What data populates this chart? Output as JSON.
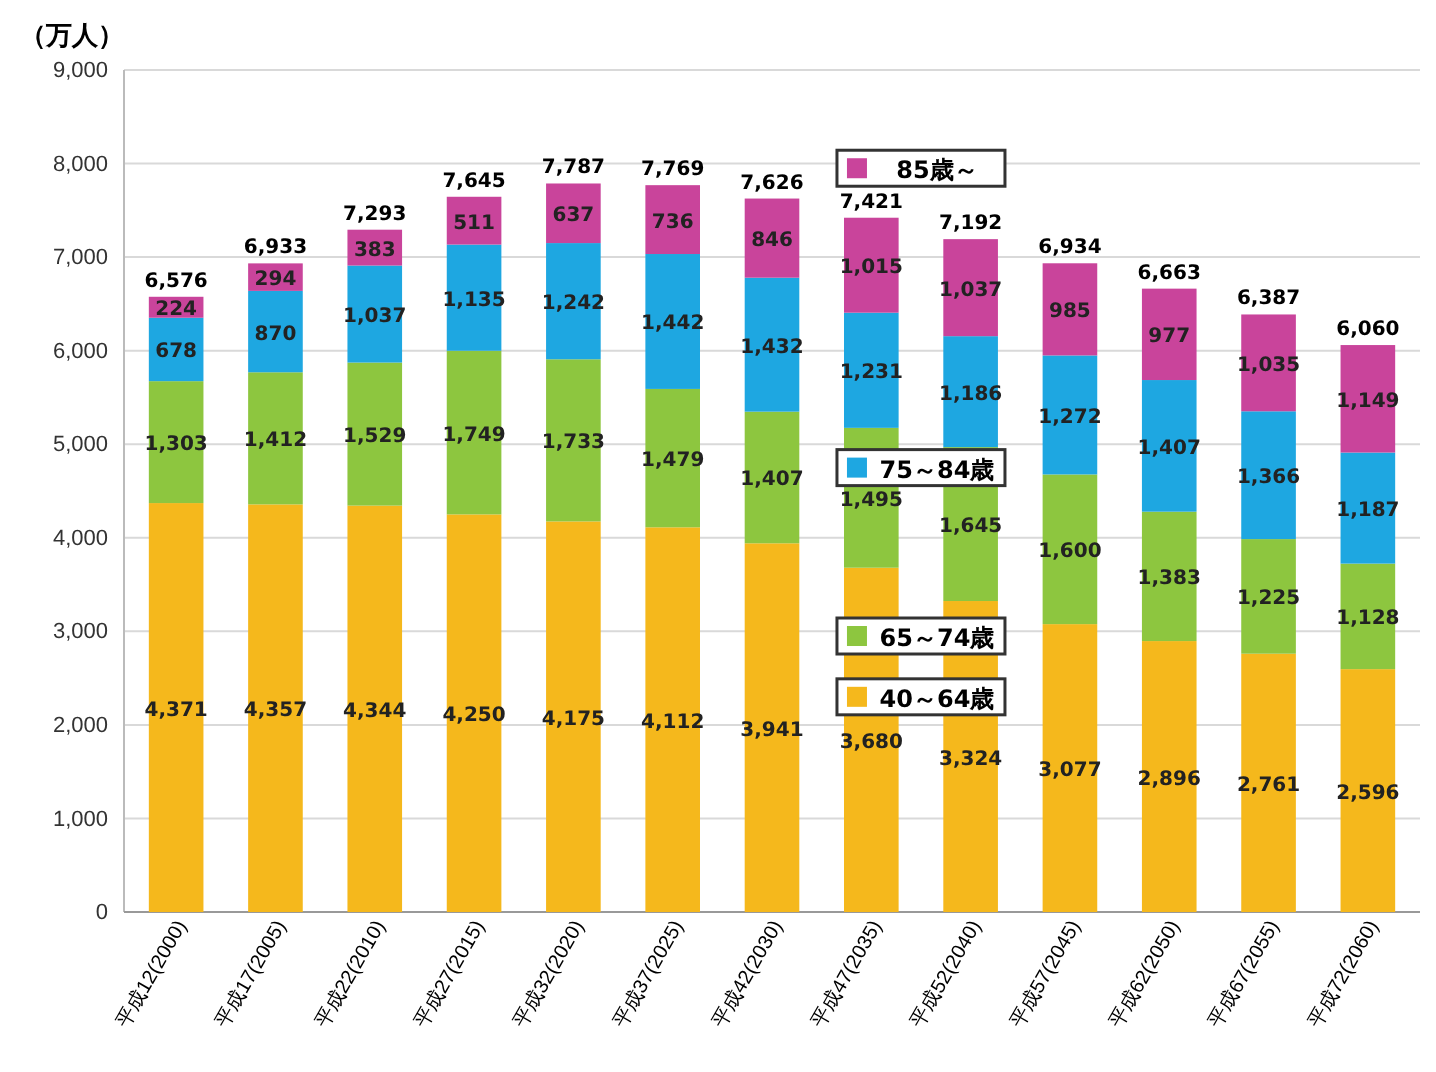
{
  "chart_data": {
    "type": "bar",
    "stacked": true,
    "ylabel": "（万人）",
    "categories": [
      "平成12(2000)",
      "平成17(2005)",
      "平成22(2010)",
      "平成27(2015)",
      "平成32(2020)",
      "平成37(2025)",
      "平成42(2030)",
      "平成47(2035)",
      "平成52(2040)",
      "平成57(2045)",
      "平成62(2050)",
      "平成67(2055)",
      "平成72(2060)"
    ],
    "series": [
      {
        "name": "40～64歳",
        "color": "#f5b81c",
        "values": [
          4371,
          4357,
          4344,
          4250,
          4175,
          4112,
          3941,
          3680,
          3324,
          3077,
          2896,
          2761,
          2596
        ],
        "value_labels": [
          "4,371",
          "4,357",
          "4,344",
          "4,250",
          "4,175",
          "4,112",
          "3,941",
          "3,680",
          "3,324",
          "3,077",
          "2,896",
          "2,761",
          "2,596"
        ]
      },
      {
        "name": "65～74歳",
        "color": "#8dc63f",
        "values": [
          1303,
          1412,
          1529,
          1749,
          1733,
          1479,
          1407,
          1495,
          1645,
          1600,
          1383,
          1225,
          1128
        ],
        "value_labels": [
          "1,303",
          "1,412",
          "1,529",
          "1,749",
          "1,733",
          "1,479",
          "1,407",
          "1,495",
          "1,645",
          "1,600",
          "1,383",
          "1,225",
          "1,128"
        ]
      },
      {
        "name": "75～84歳",
        "color": "#1ea7e1",
        "values": [
          678,
          870,
          1037,
          1135,
          1242,
          1442,
          1432,
          1231,
          1186,
          1272,
          1407,
          1366,
          1187
        ],
        "value_labels": [
          "678",
          "870",
          "1,037",
          "1,135",
          "1,242",
          "1,442",
          "1,432",
          "1,231",
          "1,186",
          "1,272",
          "1,407",
          "1,366",
          "1,187"
        ]
      },
      {
        "name": "85歳～",
        "color": "#c9449b",
        "values": [
          224,
          294,
          383,
          511,
          637,
          736,
          846,
          1015,
          1037,
          985,
          977,
          1035,
          1149
        ],
        "value_labels": [
          "224",
          "294",
          "383",
          "511",
          "637",
          "736",
          "846",
          "1,015",
          "1,037",
          "985",
          "977",
          "1,035",
          "1,149"
        ]
      }
    ],
    "totals": [
      "6,576",
      "6,933",
      "7,293",
      "7,645",
      "7,787",
      "7,769",
      "7,626",
      "7,421",
      "7,192",
      "6,934",
      "6,663",
      "6,387",
      "6,060"
    ],
    "ylim": [
      0,
      9000
    ],
    "yticks": [
      {
        "value": 0,
        "label": "0"
      },
      {
        "value": 1000,
        "label": "1,000"
      },
      {
        "value": 2000,
        "label": "2,000"
      },
      {
        "value": 3000,
        "label": "3,000"
      },
      {
        "value": 4000,
        "label": "4,000"
      },
      {
        "value": 5000,
        "label": "5,000"
      },
      {
        "value": 6000,
        "label": "6,000"
      },
      {
        "value": 7000,
        "label": "7,000"
      },
      {
        "value": 8000,
        "label": "8,000"
      },
      {
        "value": 9000,
        "label": "9,000"
      }
    ],
    "grid": "y",
    "legend": "center"
  }
}
